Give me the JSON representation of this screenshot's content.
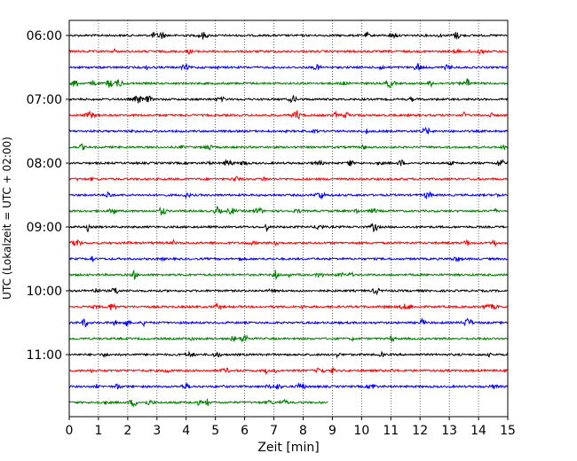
{
  "chart_data": {
    "type": "line",
    "title": "",
    "xlabel": "Zeit  [min]",
    "ylabel": "UTC (Lokalzeit = UTC + 02:00)",
    "xlim": [
      0,
      15
    ],
    "x_ticks": [
      "0",
      "1",
      "2",
      "3",
      "4",
      "5",
      "6",
      "7",
      "8",
      "9",
      "10",
      "11",
      "12",
      "13",
      "14",
      "15"
    ],
    "y_ticks": [
      "06:00",
      "07:00",
      "08:00",
      "09:00",
      "10:00",
      "11:00"
    ],
    "grid": "vertical dotted",
    "trace_interval_min": 15,
    "trace_colors": [
      "#000000",
      "#ff0000",
      "#0000ff",
      "#008000"
    ],
    "series": [
      {
        "start": "06:00",
        "color": "#000000",
        "end_min": 15
      },
      {
        "start": "06:15",
        "color": "#ff0000",
        "end_min": 15
      },
      {
        "start": "06:30",
        "color": "#0000ff",
        "end_min": 15
      },
      {
        "start": "06:45",
        "color": "#008000",
        "end_min": 15
      },
      {
        "start": "07:00",
        "color": "#000000",
        "end_min": 15
      },
      {
        "start": "07:15",
        "color": "#ff0000",
        "end_min": 15
      },
      {
        "start": "07:30",
        "color": "#0000ff",
        "end_min": 15
      },
      {
        "start": "07:45",
        "color": "#008000",
        "end_min": 15
      },
      {
        "start": "08:00",
        "color": "#000000",
        "end_min": 15
      },
      {
        "start": "08:15",
        "color": "#ff0000",
        "end_min": 15
      },
      {
        "start": "08:30",
        "color": "#0000ff",
        "end_min": 15
      },
      {
        "start": "08:45",
        "color": "#008000",
        "end_min": 15
      },
      {
        "start": "09:00",
        "color": "#000000",
        "end_min": 15
      },
      {
        "start": "09:15",
        "color": "#ff0000",
        "end_min": 15
      },
      {
        "start": "09:30",
        "color": "#0000ff",
        "end_min": 15
      },
      {
        "start": "09:45",
        "color": "#008000",
        "end_min": 15
      },
      {
        "start": "10:00",
        "color": "#000000",
        "end_min": 15
      },
      {
        "start": "10:15",
        "color": "#ff0000",
        "end_min": 15
      },
      {
        "start": "10:30",
        "color": "#0000ff",
        "end_min": 15
      },
      {
        "start": "10:45",
        "color": "#008000",
        "end_min": 15
      },
      {
        "start": "11:00",
        "color": "#000000",
        "end_min": 15
      },
      {
        "start": "11:15",
        "color": "#ff0000",
        "end_min": 15
      },
      {
        "start": "11:30",
        "color": "#0000ff",
        "end_min": 15
      },
      {
        "start": "11:45",
        "color": "#008000",
        "end_min": 8.85
      }
    ]
  }
}
